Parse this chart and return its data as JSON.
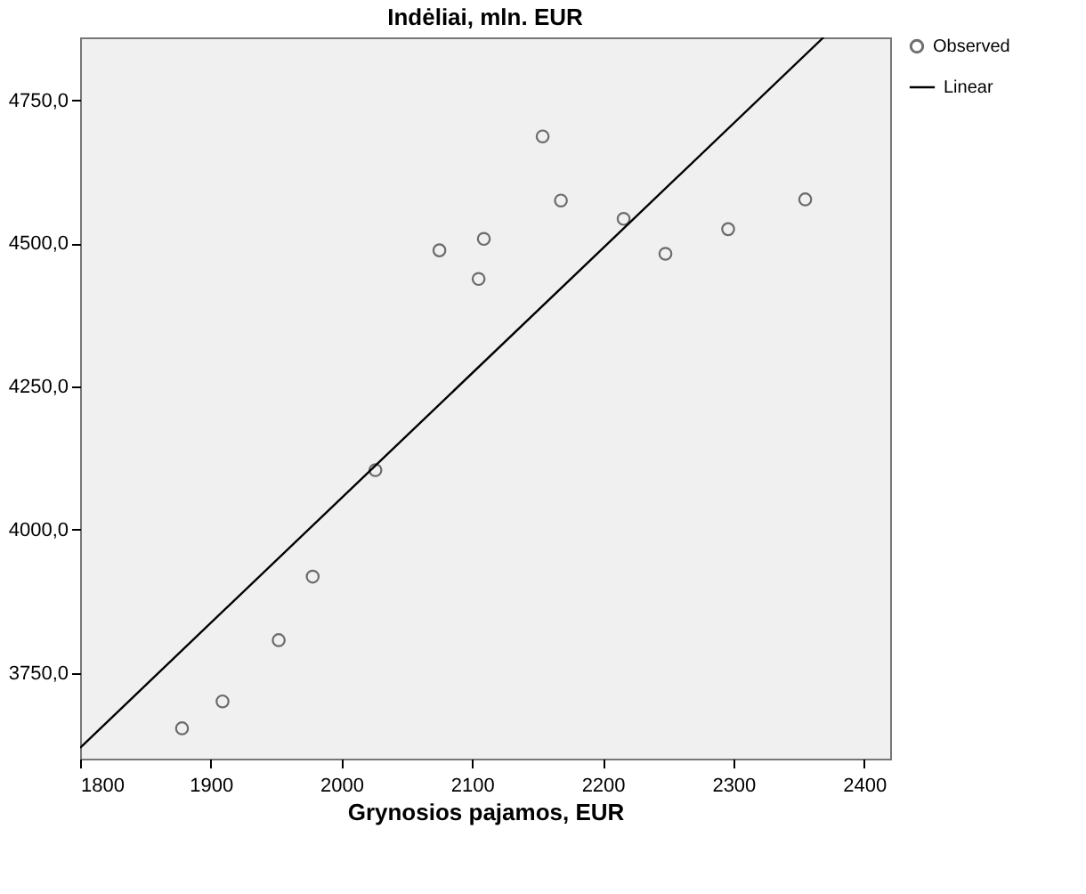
{
  "chart_data": {
    "type": "scatter",
    "title": "Indėliai, mln. EUR",
    "xlabel": "Grynosios pajamos, EUR",
    "xlim": [
      1800,
      2420
    ],
    "xticks": [
      1800,
      1900,
      2000,
      2100,
      2200,
      2300,
      2400
    ],
    "ylim": [
      3600,
      4860
    ],
    "yticks": [
      {
        "value": 3750,
        "label": "3750,0"
      },
      {
        "value": 4000,
        "label": "4000,0"
      },
      {
        "value": 4250,
        "label": "4250,0"
      },
      {
        "value": 4500,
        "label": "4500,0"
      },
      {
        "value": 4750,
        "label": "4750,0"
      }
    ],
    "grid": false,
    "legend": "top right",
    "series": [
      {
        "name": "Observed",
        "type": "scatter",
        "marker": "circle",
        "color": "#333333",
        "x": [
          1878,
          1909,
          1952,
          1978,
          2026,
          2075,
          2105,
          2109,
          2154,
          2168,
          2216,
          2248,
          2296,
          2355
        ],
        "values": [
          3653,
          3700,
          3807,
          3918,
          4104,
          4488,
          4438,
          4508,
          4687,
          4575,
          4543,
          4482,
          4525,
          4577
        ]
      },
      {
        "name": "Linear",
        "type": "line",
        "color": "#000000",
        "line_style": "solid",
        "x": [
          1800,
          2369
        ],
        "values": [
          3619,
          4860
        ]
      }
    ]
  }
}
